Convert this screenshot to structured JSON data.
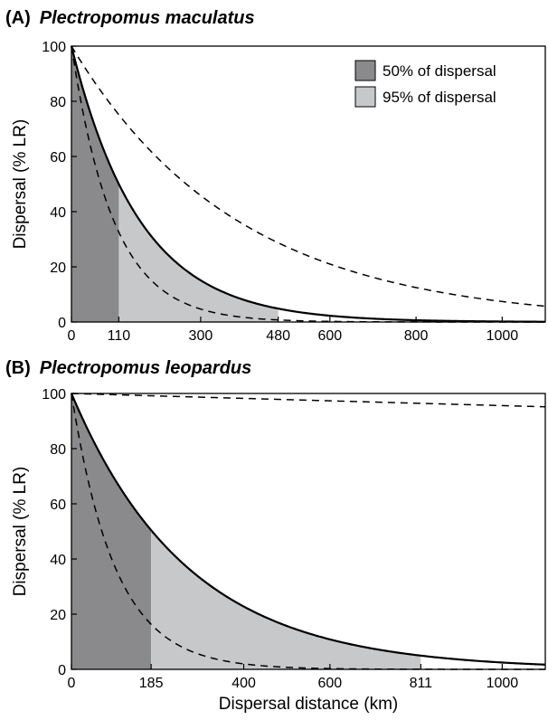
{
  "chart_data": [
    {
      "type": "area",
      "panel_letter": "(A)",
      "title": "Plectropomus maculatus",
      "xlabel": "",
      "ylabel": "Dispersal (% LR)",
      "xlim": [
        0,
        1100
      ],
      "ylim": [
        0,
        100
      ],
      "xticks": [
        0,
        110,
        300,
        480,
        600,
        800,
        1000
      ],
      "yticks": [
        0,
        20,
        40,
        60,
        80,
        100
      ],
      "grid": false,
      "legend_position": "top-right",
      "series": [
        {
          "name": "",
          "style": "solid",
          "decay_rate": 0.0063
        },
        {
          "name": "",
          "style": "dashed",
          "decay_rate": 0.0102
        },
        {
          "name": "",
          "style": "dashed",
          "decay_rate": 0.0026
        }
      ],
      "regions": [
        {
          "name": "50% of dispersal",
          "from": 0,
          "to": 110,
          "color": "#8a8a8d"
        },
        {
          "name": "95% of dispersal",
          "from": 110,
          "to": 480,
          "color": "#c7c8ca"
        }
      ]
    },
    {
      "type": "area",
      "panel_letter": "(B)",
      "title": "Plectropomus leopardus",
      "xlabel": "Dispersal distance (km)",
      "ylabel": "Dispersal (% LR)",
      "xlim": [
        0,
        1100
      ],
      "ylim": [
        0,
        100
      ],
      "xticks": [
        0,
        185,
        400,
        600,
        811,
        1000
      ],
      "yticks": [
        0,
        20,
        40,
        60,
        80,
        100
      ],
      "grid": false,
      "legend_position": "",
      "series": [
        {
          "name": "",
          "style": "solid",
          "decay_rate": 0.0037
        },
        {
          "name": "",
          "style": "dashed",
          "decay_rate": 0.0098
        },
        {
          "name": "",
          "style": "dashed",
          "decay_rate": 4.5e-05
        }
      ],
      "regions": [
        {
          "name": "50% of dispersal",
          "from": 0,
          "to": 185,
          "color": "#8a8a8d"
        },
        {
          "name": "95% of dispersal",
          "from": 185,
          "to": 811,
          "color": "#c7c8ca"
        }
      ]
    }
  ]
}
